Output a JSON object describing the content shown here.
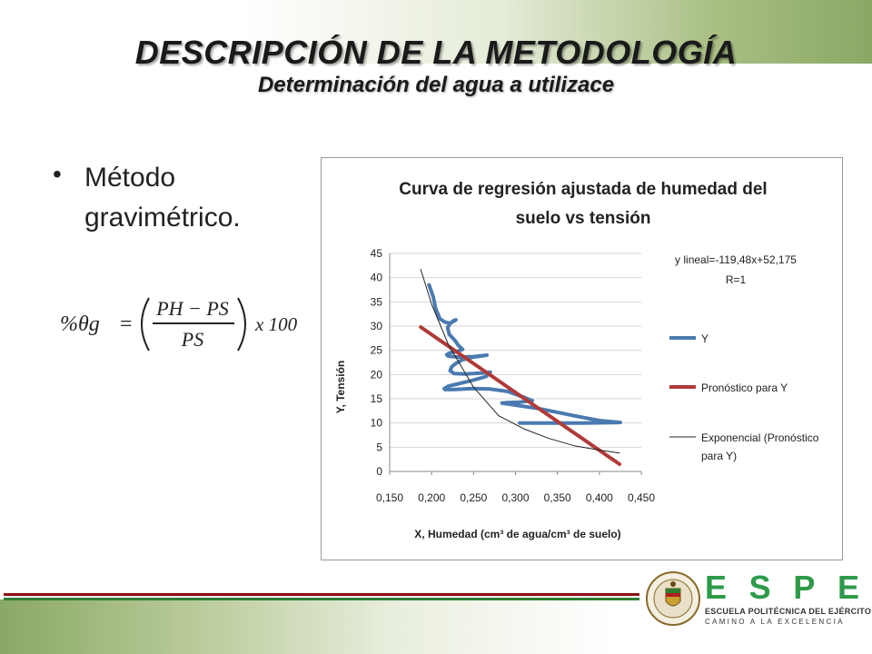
{
  "slide": {
    "title": "DESCRIPCIÓN DE LA METODOLOGÍA",
    "subtitle": "Determinación del agua a utilizace",
    "bullet": "Método gravimétrico.",
    "formula": {
      "lhs": "%θg",
      "equals": "=",
      "numerator": "PH − PS",
      "denominator": "PS",
      "multiplier": "x 100"
    }
  },
  "logo": {
    "letters": [
      "E",
      "S",
      "P",
      "E"
    ],
    "line1": "ESCUELA POLITÉCNICA DEL EJÉRCITO",
    "line2": "CAMINO A LA EXCELENCIA",
    "colors": {
      "green": "#2e9a4a",
      "rule_red": "#8a0f0f",
      "rule_green": "#2e7d32"
    }
  },
  "chart_data": {
    "type": "line",
    "title": "Curva de regresión ajustada de humedad del suelo vs tensión",
    "title_lines": [
      "Curva de regresión ajustada de humedad del",
      "suelo vs tensión"
    ],
    "xlabel": "X, Humedad (cm³ de agua/cm³ de suelo)",
    "ylabel": "Y, Tensión",
    "xlim": [
      0.15,
      0.45
    ],
    "ylim": [
      0,
      45
    ],
    "x_ticks": [
      "0,150",
      "0,200",
      "0,250",
      "0,300",
      "0,350",
      "0,400",
      "0,450"
    ],
    "x_tick_values": [
      0.15,
      0.2,
      0.25,
      0.3,
      0.35,
      0.4,
      0.45
    ],
    "y_ticks": [
      "0",
      "5",
      "10",
      "15",
      "20",
      "25",
      "30",
      "35",
      "40",
      "45"
    ],
    "y_tick_values": [
      0,
      5,
      10,
      15,
      20,
      25,
      30,
      35,
      40,
      45
    ],
    "grid": true,
    "legend_position": "right",
    "annotation": [
      "y lineal=-119,48x+52,175",
      "R=1"
    ],
    "series": [
      {
        "name": "Y",
        "color": "#4a7ab0",
        "style": "thick",
        "x": [
          0.197,
          0.202,
          0.205,
          0.21,
          0.216,
          0.222,
          0.226,
          0.229,
          0.226,
          0.222,
          0.219,
          0.221,
          0.228,
          0.232,
          0.235,
          0.237,
          0.231,
          0.222,
          0.218,
          0.22,
          0.232,
          0.25,
          0.261,
          0.266,
          0.25,
          0.236,
          0.229,
          0.224,
          0.222,
          0.227,
          0.24,
          0.258,
          0.27,
          0.265,
          0.249,
          0.232,
          0.22,
          0.215,
          0.216,
          0.225,
          0.248,
          0.27,
          0.291,
          0.31,
          0.32,
          0.305,
          0.29,
          0.284,
          0.292,
          0.33,
          0.37,
          0.4,
          0.425,
          0.38,
          0.33,
          0.305
        ],
        "y": [
          38.5,
          36,
          33.5,
          31.5,
          30.8,
          30.6,
          31,
          31.3,
          31.1,
          30.5,
          29.7,
          28.3,
          27,
          26,
          25.5,
          25.2,
          24.8,
          24.5,
          24.1,
          23.8,
          23.6,
          23.7,
          23.9,
          24,
          23.6,
          23,
          22.3,
          21.6,
          20.8,
          20.2,
          20.1,
          20.3,
          20.5,
          19.6,
          18.8,
          18.1,
          17.6,
          17.1,
          16.9,
          16.9,
          17.1,
          17,
          16.5,
          15.3,
          14.6,
          14.3,
          14.2,
          14.1,
          13.9,
          12.9,
          11.5,
          10.5,
          10.1,
          10,
          10,
          10
        ]
      },
      {
        "name": "Pronóstico para Y",
        "color": "#b03a38",
        "style": "thick",
        "x": [
          0.187,
          0.424
        ],
        "y": [
          29.8,
          1.5
        ]
      },
      {
        "name": "Exponencial (Pronóstico para Y)",
        "color": "#222222",
        "style": "thin",
        "x": [
          0.187,
          0.2,
          0.22,
          0.25,
          0.28,
          0.31,
          0.34,
          0.37,
          0.4,
          0.424
        ],
        "y": [
          41.7,
          34.5,
          26.2,
          17.4,
          11.5,
          8.8,
          6.8,
          5.3,
          4.4,
          3.8
        ]
      }
    ]
  }
}
